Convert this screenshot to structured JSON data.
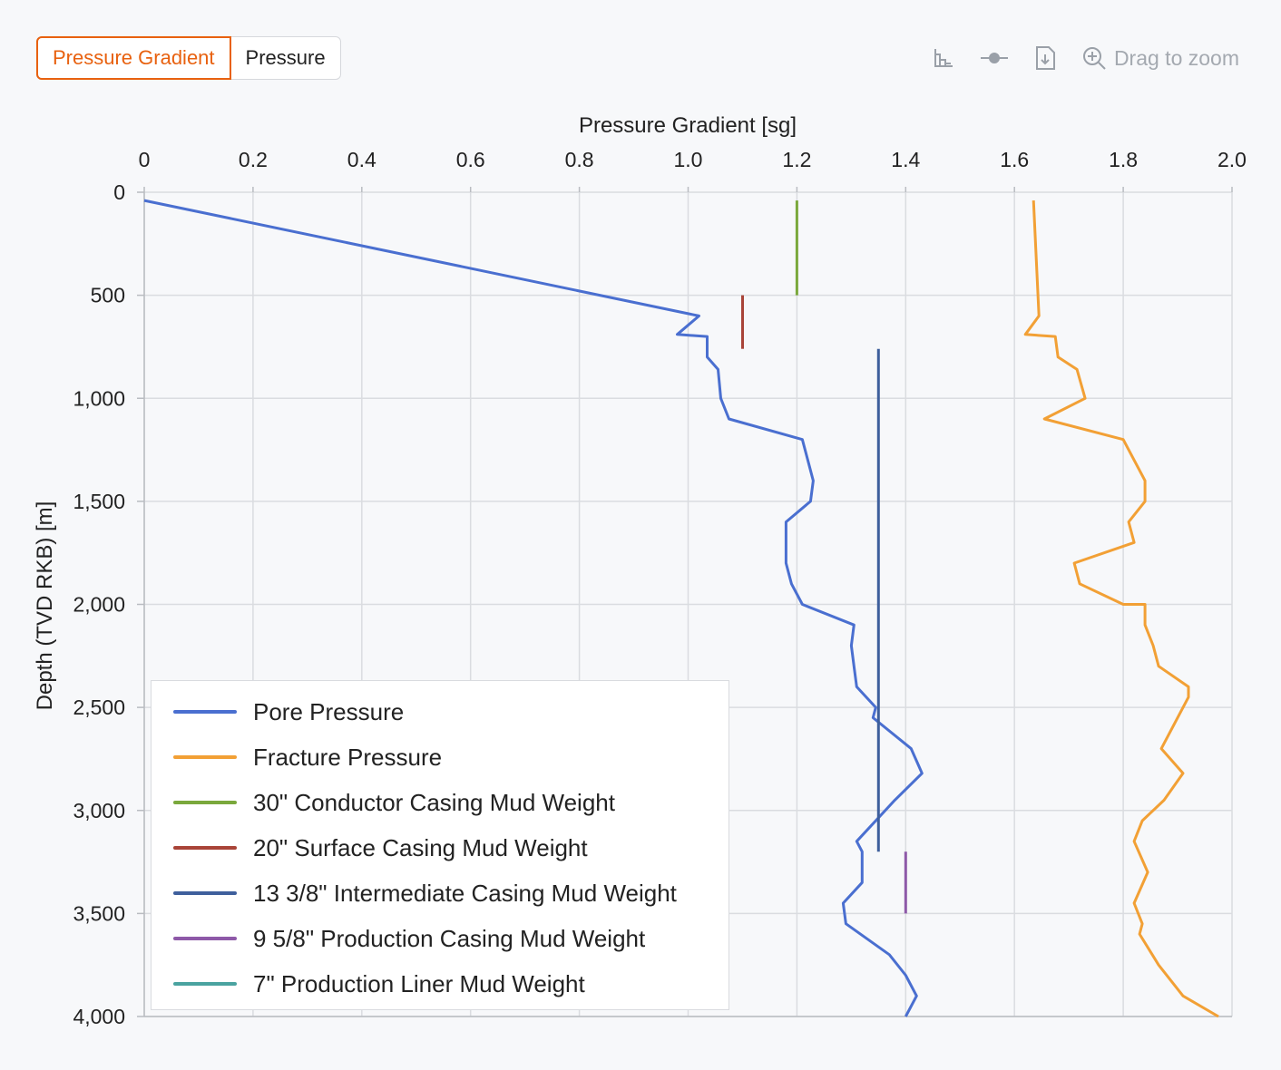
{
  "toggle": {
    "options": [
      "Pressure Gradient",
      "Pressure"
    ],
    "active": 0
  },
  "toolbar": {
    "icons": [
      "axis-scale-icon",
      "point-marker-icon",
      "download-icon",
      "zoom-in-icon"
    ],
    "zoom_label": "Drag to zoom"
  },
  "colors": {
    "accent": "#e8610f",
    "grid": "#dadce0",
    "axis": "#b9bcc1",
    "text": "#222222"
  },
  "chart_data": {
    "type": "line",
    "xlabel": "Pressure Gradient [sg]",
    "ylabel": "Depth (TVD RKB) [m]",
    "xlim": [
      0,
      2.0
    ],
    "ylim": [
      0,
      4000
    ],
    "y_inverted": true,
    "x_axis_position": "top",
    "x_ticks": [
      0,
      0.2,
      0.4,
      0.6,
      0.8,
      1.0,
      1.2,
      1.4,
      1.6,
      1.8,
      2.0
    ],
    "x_tick_labels": [
      "0",
      "0.2",
      "0.4",
      "0.6",
      "0.8",
      "1.0",
      "1.2",
      "1.4",
      "1.6",
      "1.8",
      "2.0"
    ],
    "y_ticks": [
      0,
      500,
      1000,
      1500,
      2000,
      2500,
      3000,
      3500,
      4000
    ],
    "y_tick_labels": [
      "0",
      "500",
      "1,000",
      "1,500",
      "2,000",
      "2,500",
      "3,000",
      "3,500",
      "4,000"
    ],
    "grid": true,
    "legend_position": "bottom-left",
    "series": [
      {
        "name": "Pore Pressure",
        "color": "#4a6fd0",
        "points": [
          [
            0,
            40
          ],
          [
            1.02,
            600
          ],
          [
            0.98,
            690
          ],
          [
            1.035,
            700
          ],
          [
            1.035,
            800
          ],
          [
            1.055,
            860
          ],
          [
            1.06,
            1000
          ],
          [
            1.075,
            1100
          ],
          [
            1.21,
            1200
          ],
          [
            1.23,
            1400
          ],
          [
            1.225,
            1500
          ],
          [
            1.18,
            1600
          ],
          [
            1.18,
            1800
          ],
          [
            1.19,
            1900
          ],
          [
            1.21,
            2000
          ],
          [
            1.305,
            2100
          ],
          [
            1.3,
            2200
          ],
          [
            1.305,
            2300
          ],
          [
            1.31,
            2400
          ],
          [
            1.345,
            2500
          ],
          [
            1.34,
            2550
          ],
          [
            1.41,
            2700
          ],
          [
            1.43,
            2820
          ],
          [
            1.38,
            2950
          ],
          [
            1.31,
            3150
          ],
          [
            1.32,
            3200
          ],
          [
            1.32,
            3350
          ],
          [
            1.285,
            3450
          ],
          [
            1.29,
            3550
          ],
          [
            1.37,
            3700
          ],
          [
            1.4,
            3800
          ],
          [
            1.42,
            3900
          ],
          [
            1.4,
            4000
          ]
        ]
      },
      {
        "name": "Fracture Pressure",
        "color": "#f2a035",
        "points": [
          [
            1.635,
            40
          ],
          [
            1.645,
            600
          ],
          [
            1.62,
            690
          ],
          [
            1.675,
            700
          ],
          [
            1.68,
            800
          ],
          [
            1.715,
            860
          ],
          [
            1.73,
            1000
          ],
          [
            1.655,
            1100
          ],
          [
            1.8,
            1200
          ],
          [
            1.84,
            1400
          ],
          [
            1.84,
            1500
          ],
          [
            1.81,
            1600
          ],
          [
            1.82,
            1700
          ],
          [
            1.71,
            1800
          ],
          [
            1.72,
            1900
          ],
          [
            1.8,
            2000
          ],
          [
            1.84,
            2000
          ],
          [
            1.84,
            2100
          ],
          [
            1.855,
            2200
          ],
          [
            1.865,
            2300
          ],
          [
            1.92,
            2400
          ],
          [
            1.92,
            2450
          ],
          [
            1.87,
            2700
          ],
          [
            1.91,
            2820
          ],
          [
            1.875,
            2950
          ],
          [
            1.835,
            3050
          ],
          [
            1.82,
            3150
          ],
          [
            1.845,
            3300
          ],
          [
            1.82,
            3450
          ],
          [
            1.835,
            3550
          ],
          [
            1.83,
            3600
          ],
          [
            1.865,
            3750
          ],
          [
            1.91,
            3900
          ],
          [
            1.975,
            4000
          ]
        ]
      },
      {
        "name": "30\" Conductor Casing Mud Weight",
        "color": "#7aa83c",
        "points": [
          [
            1.2,
            40
          ],
          [
            1.2,
            500
          ]
        ]
      },
      {
        "name": "20\" Surface Casing Mud Weight",
        "color": "#a94438",
        "points": [
          [
            1.1,
            500
          ],
          [
            1.1,
            760
          ]
        ]
      },
      {
        "name": "13 3/8\" Intermediate Casing Mud Weight",
        "color": "#3e5f9c",
        "points": [
          [
            1.35,
            760
          ],
          [
            1.35,
            3200
          ]
        ]
      },
      {
        "name": "9 5/8\" Production Casing Mud Weight",
        "color": "#8e59a8",
        "points": [
          [
            1.4,
            3200
          ],
          [
            1.4,
            3500
          ]
        ]
      },
      {
        "name": "7\" Production Liner Mud Weight",
        "color": "#4aa3a0",
        "points": []
      }
    ]
  }
}
